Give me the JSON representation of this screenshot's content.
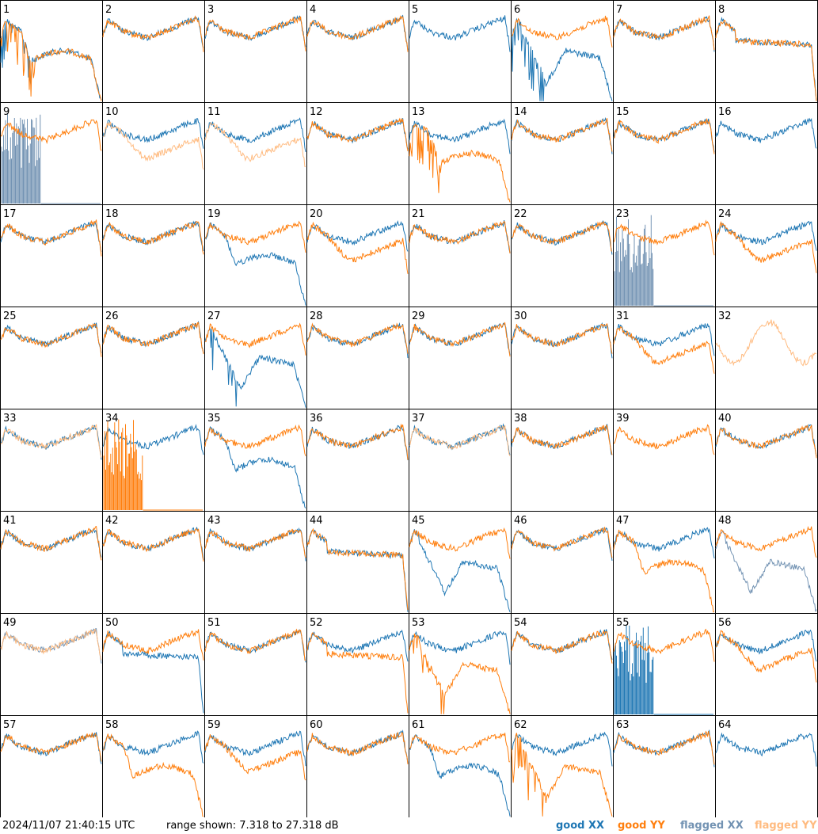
{
  "chart_data": {
    "type": "line",
    "layout": "small-multiples 8x8",
    "panel_labels": [
      "1",
      "2",
      "3",
      "4",
      "5",
      "6",
      "7",
      "8",
      "9",
      "10",
      "11",
      "12",
      "13",
      "14",
      "15",
      "16",
      "17",
      "18",
      "19",
      "20",
      "21",
      "22",
      "23",
      "24",
      "25",
      "26",
      "27",
      "28",
      "29",
      "30",
      "31",
      "32",
      "33",
      "34",
      "35",
      "36",
      "37",
      "38",
      "39",
      "40",
      "41",
      "42",
      "43",
      "44",
      "45",
      "46",
      "47",
      "48",
      "49",
      "50",
      "51",
      "52",
      "53",
      "54",
      "55",
      "56",
      "57",
      "58",
      "59",
      "60",
      "61",
      "62",
      "63",
      "64"
    ],
    "y_range_db": [
      7.318,
      27.318
    ],
    "series": [
      {
        "name": "good XX",
        "color": "#1f77b4"
      },
      {
        "name": "good YY",
        "color": "#ff7f0e"
      },
      {
        "name": "flagged XX",
        "color": "#7393b3"
      },
      {
        "name": "flagged YY",
        "color": "#ffbb80"
      }
    ],
    "panels": {
      "1": {
        "xx": "lowdrop",
        "yy": "lowdrop",
        "spiky": "both"
      },
      "5": {
        "xx": "normal",
        "yy": "none"
      },
      "6": {
        "xx": "bigdip",
        "yy": "normal",
        "spiky": "xx"
      },
      "8": {
        "xx": "flat",
        "yy": "flat"
      },
      "9": {
        "xx": "spikesfloor",
        "yy": "normal",
        "flagged_x": true
      },
      "10": {
        "xx": "normal",
        "yy": "lowmid",
        "flagged_y": true
      },
      "11": {
        "xx": "normal",
        "yy": "lowmid",
        "flagged_y": true
      },
      "13": {
        "xx": "normal",
        "yy": "lowdrop",
        "spiky": "yy"
      },
      "16": {
        "xx": "normal",
        "yy": "none"
      },
      "19": {
        "xx": "lowdrop",
        "yy": "normal"
      },
      "20": {
        "xx": "normal",
        "yy": "lowmid"
      },
      "23": {
        "xx": "spikesfloor",
        "yy": "normal",
        "flagged_x": true
      },
      "24": {
        "xx": "normal",
        "yy": "lowmid"
      },
      "27": {
        "xx": "bigdip",
        "yy": "normal",
        "spiky": "xx"
      },
      "31": {
        "xx": "normal",
        "yy": "lowmid"
      },
      "32": {
        "xx": "none",
        "yy": "noisy",
        "flagged_y": true
      },
      "33": {
        "xx": "normal",
        "yy": "normal",
        "flagged_y": true
      },
      "34": {
        "xx": "normal",
        "yy": "spikesfloor"
      },
      "35": {
        "xx": "lowdrop",
        "yy": "normal"
      },
      "37": {
        "xx": "normal",
        "yy": "normal",
        "flagged_y": true
      },
      "39": {
        "xx": "none",
        "yy": "normal"
      },
      "44": {
        "xx": "flat",
        "yy": "flat"
      },
      "45": {
        "xx": "bigdip",
        "yy": "normal"
      },
      "47": {
        "xx": "normal",
        "yy": "lowdrop"
      },
      "48": {
        "xx": "bigdip",
        "yy": "normal",
        "flagged_x": true
      },
      "49": {
        "xx": "normal",
        "yy": "normal",
        "flagged_x": true,
        "flagged_y": true
      },
      "50": {
        "xx": "flat",
        "yy": "normal"
      },
      "52": {
        "xx": "normal",
        "yy": "flat"
      },
      "53": {
        "xx": "normal",
        "yy": "bigdip",
        "spiky": "yy"
      },
      "55": {
        "xx": "spikesfloor",
        "yy": "normal"
      },
      "56": {
        "xx": "normal",
        "yy": "lowmid"
      },
      "58": {
        "xx": "normal",
        "yy": "lowdrop"
      },
      "59": {
        "xx": "normal",
        "yy": "lowmid"
      },
      "61": {
        "xx": "lowdrop",
        "yy": "normal"
      },
      "62": {
        "xx": "normal",
        "yy": "bigdip",
        "spiky": "yy"
      },
      "64": {
        "xx": "normal",
        "yy": "none"
      }
    }
  },
  "footer": {
    "timestamp": "2024/11/07 21:40:15 UTC",
    "range_text": "range shown: 7.318 to 27.318 dB"
  },
  "legend": {
    "good_xx": "good XX",
    "good_yy": "good YY",
    "flagged_xx": "flagged XX",
    "flagged_yy": "flagged YY"
  }
}
